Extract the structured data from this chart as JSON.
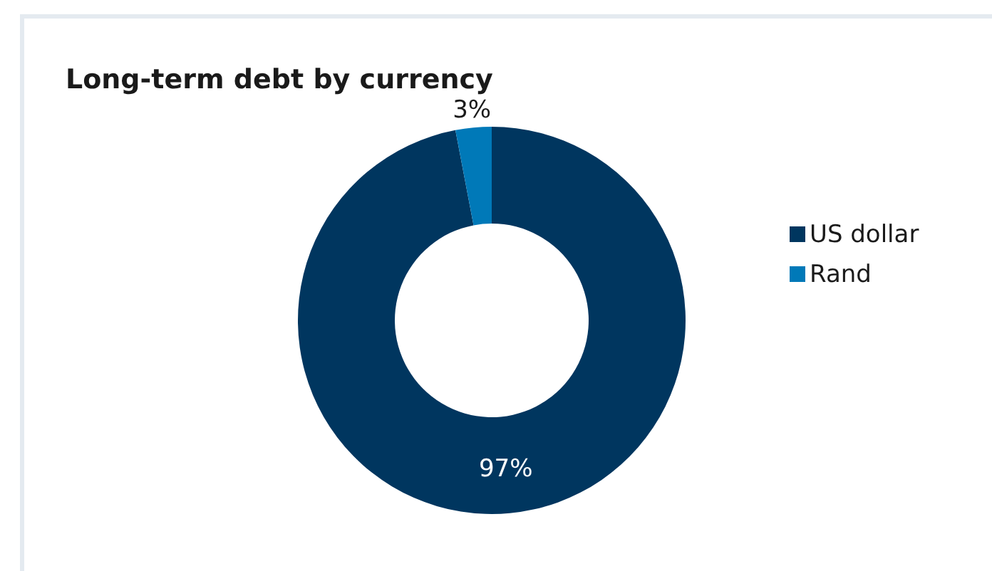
{
  "chart_data": {
    "type": "donut",
    "title": "Long-term debt by currency",
    "categories": [
      "US dollar",
      "Rand"
    ],
    "values": [
      97,
      3
    ],
    "colors": [
      "#00365f",
      "#0079b8"
    ],
    "value_labels": [
      "97%",
      "3%"
    ],
    "legend": "right"
  }
}
